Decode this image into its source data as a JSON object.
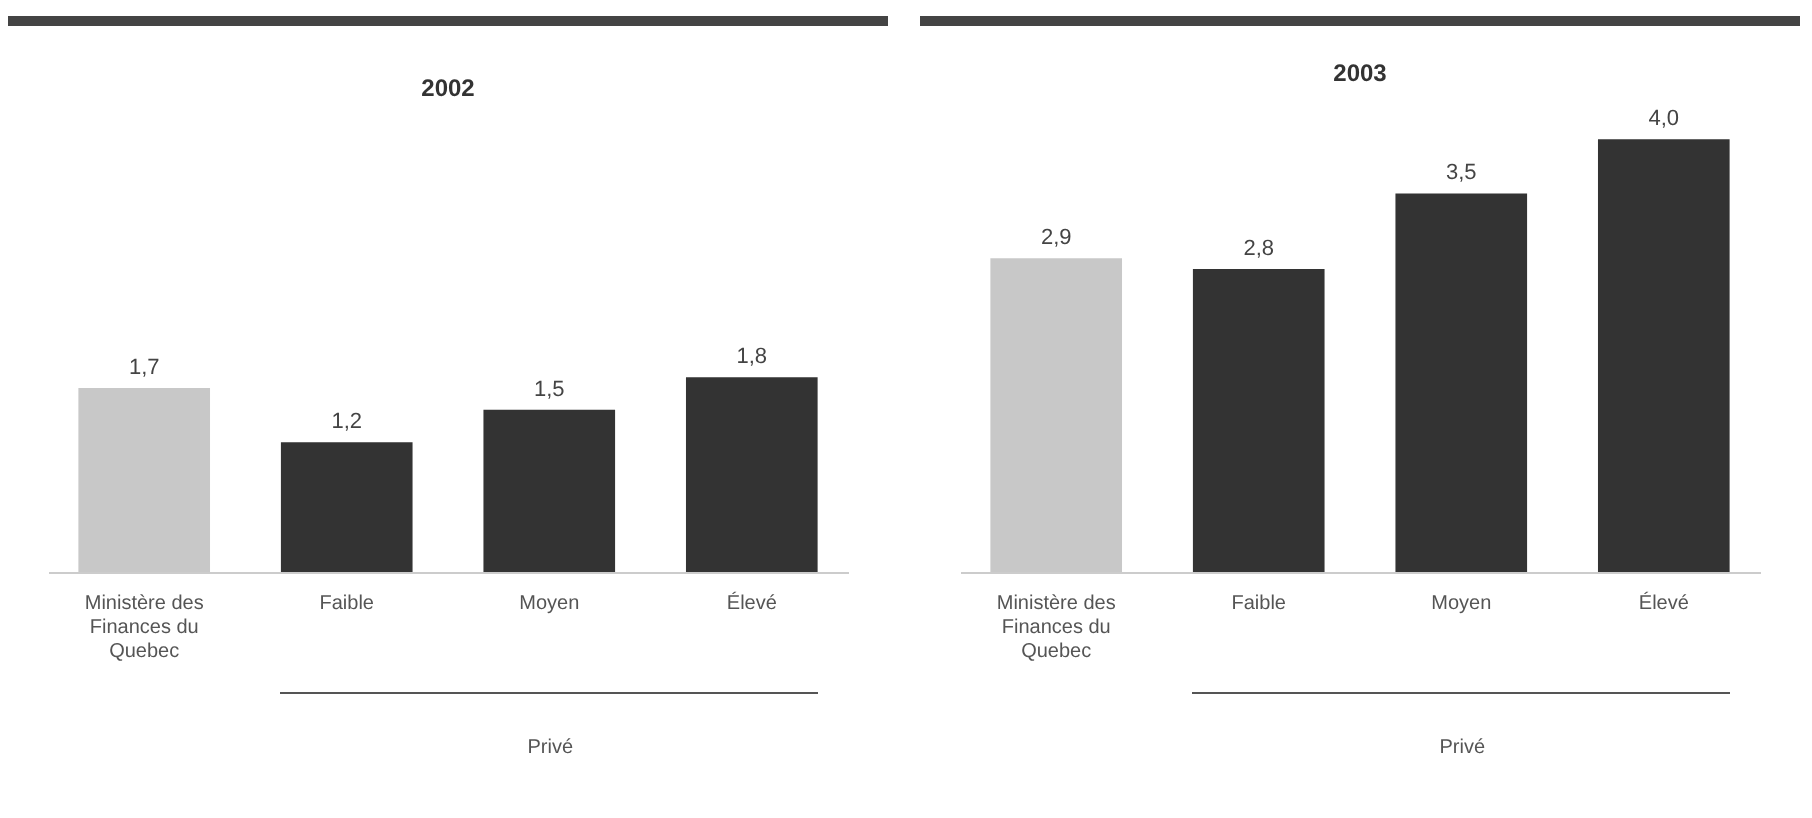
{
  "chart_data": [
    {
      "type": "bar",
      "title": "2002",
      "xlabel": "Privé",
      "categories": [
        "Ministère des Finances du Quebec",
        "Faible",
        "Moyen",
        "Élevé"
      ],
      "values": [
        1.7,
        1.2,
        1.5,
        1.8
      ],
      "colors": [
        "#c8c8c8",
        "#333333",
        "#333333",
        "#333333"
      ],
      "value_labels": [
        "1,7",
        "1,2",
        "1,5",
        "1,8"
      ]
    },
    {
      "type": "bar",
      "title": "2003",
      "xlabel": "Privé",
      "categories": [
        "Ministère des Finances du Quebec",
        "Faible",
        "Moyen",
        "Élevé"
      ],
      "values": [
        2.9,
        2.8,
        3.5,
        4.0
      ],
      "colors": [
        "#c8c8c8",
        "#333333",
        "#333333",
        "#333333"
      ],
      "value_labels": [
        "2,9",
        "2,8",
        "3,5",
        "4,0"
      ]
    }
  ]
}
